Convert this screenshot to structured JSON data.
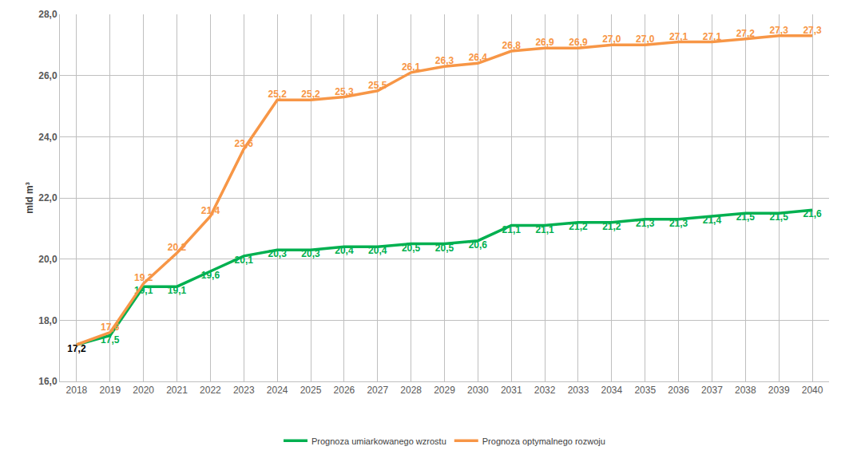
{
  "chart_data": {
    "type": "line",
    "y_label": "mld m³",
    "categories": [
      "2018",
      "2019",
      "2020",
      "2021",
      "2022",
      "2023",
      "2024",
      "2025",
      "2026",
      "2027",
      "2028",
      "2029",
      "2030",
      "2031",
      "2032",
      "2033",
      "2034",
      "2035",
      "2036",
      "2037",
      "2038",
      "2039",
      "2040"
    ],
    "series": [
      {
        "name": "Prognoza umiarkowanego wzrostu",
        "color": "#00b050",
        "values": [
          17.2,
          17.5,
          19.1,
          19.1,
          19.6,
          20.1,
          20.3,
          20.3,
          20.4,
          20.4,
          20.5,
          20.5,
          20.6,
          21.1,
          21.1,
          21.2,
          21.2,
          21.3,
          21.3,
          21.4,
          21.5,
          21.5,
          21.6
        ],
        "value_labels": [
          "17,2",
          "17,5",
          "19,1",
          "19,1",
          "19,6",
          "20,1",
          "20,3",
          "20,3",
          "20,4",
          "20,4",
          "20,5",
          "20,5",
          "20,6",
          "21,1",
          "21,1",
          "21,2",
          "21,2",
          "21,3",
          "21,3",
          "21,4",
          "21,5",
          "21,5",
          "21,6"
        ]
      },
      {
        "name": "Prognoza optymalnego rozwoju",
        "color": "#f79646",
        "values": [
          17.2,
          17.6,
          19.2,
          20.2,
          21.4,
          23.6,
          25.2,
          25.2,
          25.3,
          25.5,
          26.1,
          26.3,
          26.4,
          26.8,
          26.9,
          26.9,
          27.0,
          27.0,
          27.1,
          27.1,
          27.2,
          27.3,
          27.3
        ],
        "value_labels": [
          null,
          "17,6",
          "19,2",
          "20,2",
          "21,4",
          "23,6",
          "25,2",
          "25,2",
          "25,3",
          "25,5",
          "26,1",
          "26,3",
          "26,4",
          "26,8",
          "26,9",
          "26,9",
          "27,0",
          "27,0",
          "27,1",
          "27,1",
          "27,2",
          "27,3",
          "27,3"
        ]
      }
    ],
    "ylim": [
      16,
      28
    ],
    "yticks": [
      {
        "value": 16,
        "label": "16,0"
      },
      {
        "value": 18,
        "label": "18,0"
      },
      {
        "value": 20,
        "label": "20,0"
      },
      {
        "value": 22,
        "label": "22,0"
      },
      {
        "value": 24,
        "label": "24,0"
      },
      {
        "value": 26,
        "label": "26,0"
      },
      {
        "value": 28,
        "label": "28,0"
      }
    ],
    "grid": true,
    "legend": "bottom",
    "data_labels": true
  }
}
